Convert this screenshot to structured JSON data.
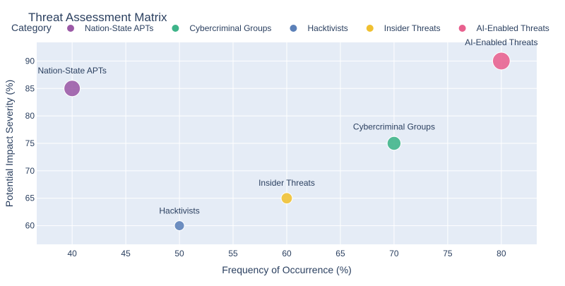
{
  "chart_data": {
    "type": "scatter",
    "title": "Threat Assessment Matrix",
    "legend": {
      "title": "Category",
      "placement": "top"
    },
    "xlabel": "Frequency of Occurrence (%)",
    "ylabel": "Potential Impact Severity (%)",
    "xlim": [
      36.7,
      83.3
    ],
    "ylim": [
      56.6,
      93.4
    ],
    "xticks": [
      40,
      45,
      50,
      55,
      60,
      65,
      70,
      75,
      80
    ],
    "yticks": [
      60,
      65,
      70,
      75,
      80,
      85,
      90
    ],
    "grid": true,
    "series": [
      {
        "name": "Nation-State APTs",
        "x": 40,
        "y": 85,
        "color": "#9B59A6",
        "label": "Nation-State APTs"
      },
      {
        "name": "Cybercriminal Groups",
        "x": 70,
        "y": 75,
        "color": "#3EB489",
        "label": "Cybercriminal Groups"
      },
      {
        "name": "Hacktivists",
        "x": 50,
        "y": 60,
        "color": "#5B80B8",
        "label": "Hacktivists"
      },
      {
        "name": "Insider Threats",
        "x": 60,
        "y": 65,
        "color": "#F0C030",
        "label": "Insider Threats"
      },
      {
        "name": "AI-Enabled Threats",
        "x": 80,
        "y": 90,
        "color": "#E8608E",
        "label": "AI-Enabled Threats"
      }
    ]
  },
  "colors": {
    "plot_background": "#E5ECF6",
    "gridline": "#ffffff",
    "text": "#2a3f5f"
  }
}
